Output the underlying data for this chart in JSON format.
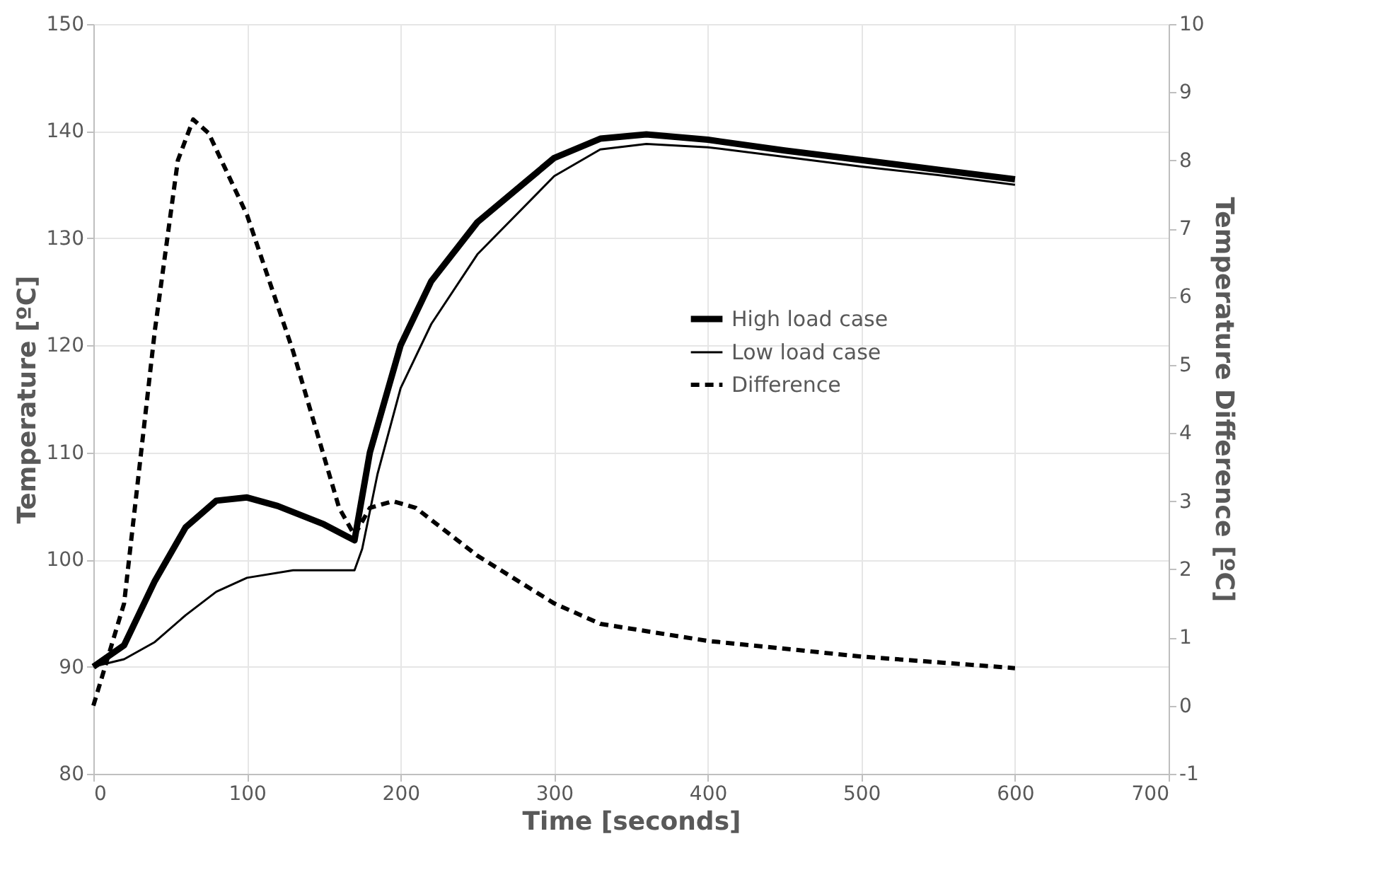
{
  "chart_data": {
    "type": "line",
    "xlabel": "Time [seconds]",
    "ylabel": "Temperature [ºC]",
    "y2label": "Temperature Difference [ºC]",
    "xlim": [
      0,
      700
    ],
    "xticks": [
      0,
      100,
      200,
      300,
      400,
      500,
      600,
      700
    ],
    "ylim": [
      80,
      150
    ],
    "yticks": [
      80,
      90,
      100,
      110,
      120,
      130,
      140,
      150
    ],
    "y2lim": [
      -1,
      10
    ],
    "y2ticks": [
      -1,
      0,
      1,
      2,
      3,
      4,
      5,
      6,
      7,
      8,
      9,
      10
    ],
    "grid": true,
    "legend": "right",
    "marker": "none",
    "series": [
      {
        "name": "High load case",
        "color": "#000000",
        "line_style": "solid",
        "x": [
          0,
          20,
          40,
          60,
          80,
          100,
          120,
          150,
          170,
          180,
          200,
          220,
          250,
          300,
          330,
          360,
          400,
          450,
          500,
          550,
          600
        ],
        "values": [
          90,
          92,
          98,
          103,
          105.5,
          105.8,
          105,
          103.3,
          101.8,
          110,
          120,
          126,
          131.5,
          137.5,
          139.3,
          139.7,
          139.2,
          138.2,
          137.3,
          136.4,
          135.5
        ]
      },
      {
        "name": "Low load case",
        "color": "#000000",
        "line_style": "solid",
        "x": [
          0,
          20,
          40,
          60,
          80,
          100,
          130,
          170,
          175,
          185,
          200,
          220,
          250,
          300,
          330,
          360,
          400,
          450,
          500,
          550,
          600
        ],
        "values": [
          90,
          90.7,
          92.3,
          94.8,
          97,
          98.3,
          99,
          99,
          101,
          108,
          116,
          122,
          128.5,
          135.8,
          138.3,
          138.8,
          138.5,
          137.6,
          136.7,
          135.9,
          135
        ]
      },
      {
        "name": "Difference",
        "color": "#000000",
        "line_style": "dashed",
        "axis": "y2",
        "x": [
          0,
          20,
          40,
          55,
          65,
          75,
          100,
          130,
          160,
          170,
          180,
          195,
          210,
          250,
          300,
          330,
          400,
          500,
          600
        ],
        "values": [
          0,
          1.5,
          5.5,
          8,
          8.6,
          8.4,
          7.2,
          5.2,
          2.9,
          2.5,
          2.9,
          3.0,
          2.9,
          2.2,
          1.5,
          1.2,
          0.95,
          0.72,
          0.55
        ]
      }
    ]
  }
}
